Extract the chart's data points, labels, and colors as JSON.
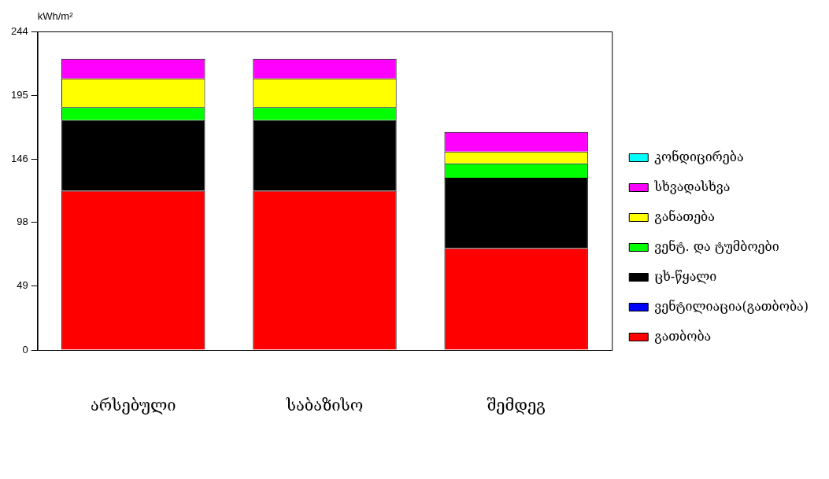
{
  "chart_data": {
    "type": "bar",
    "stacked": true,
    "ylabel": "kWh/m²",
    "categories": [
      "არსებული",
      "საბაზისო",
      "შემდეგ"
    ],
    "ylim": [
      0,
      244
    ],
    "yticks": [
      0,
      49,
      98,
      146,
      195,
      244
    ],
    "grid": false,
    "legend": "right",
    "series": [
      {
        "name": "გათბობა",
        "color": "#ff0000",
        "values": [
          122,
          122,
          78
        ]
      },
      {
        "name": "ვენტილიაცია(გათბობა)",
        "color": "#0000ff",
        "values": [
          0,
          0,
          0
        ]
      },
      {
        "name": "ცხ-წყალი",
        "color": "#000000",
        "values": [
          54,
          54,
          54
        ]
      },
      {
        "name": "ვენტ. და ტუმბოები",
        "color": "#00ff00",
        "values": [
          10,
          10,
          11
        ]
      },
      {
        "name": "განათება",
        "color": "#ffff00",
        "values": [
          22,
          22,
          9
        ]
      },
      {
        "name": "სხვადასხვა",
        "color": "#ff00ff",
        "values": [
          15,
          15,
          15
        ]
      },
      {
        "name": "კონდიცირება",
        "color": "#00ffff",
        "values": [
          0,
          0,
          0
        ]
      }
    ]
  }
}
